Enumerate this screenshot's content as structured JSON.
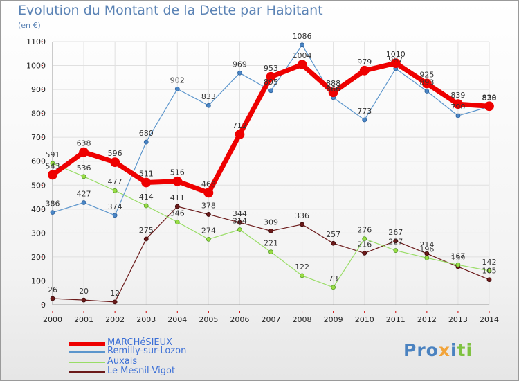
{
  "title": "Evolution du Montant de la Dette par Habitant",
  "unit": "(en €)",
  "logo": {
    "text": "Proxiti",
    "parts": [
      "Pro",
      "x",
      "i",
      "ti"
    ]
  },
  "colors": {
    "MARCHéSIEUX": "#ee0000",
    "Remilly-sur-Lozon": "#5b95cc",
    "Auxais": "#99dd66",
    "Le Mesnil-Vigot": "#6b1a1a",
    "title": "#5b83b5",
    "axis_text": "#222222",
    "grid": "#e0e0e0"
  },
  "chart_data": {
    "type": "line",
    "title": "Evolution du Montant de la Dette par Habitant",
    "subtitle": "(en €)",
    "xlabel": "",
    "ylabel": "",
    "x": [
      "2000",
      "2001",
      "2002",
      "2003",
      "2004",
      "2005",
      "2006",
      "2007",
      "2008",
      "2009",
      "2010",
      "2011",
      "2012",
      "2013",
      "2014"
    ],
    "ylim": [
      0,
      1100
    ],
    "yticks": [
      0,
      100,
      200,
      300,
      400,
      500,
      600,
      700,
      800,
      900,
      1000,
      1100
    ],
    "grid": true,
    "legend_position": "bottom-left",
    "series": [
      {
        "name": "MARCHéSIEUX",
        "values": [
          543,
          638,
          596,
          511,
          516,
          468,
          712,
          953,
          1004,
          888,
          979,
          1010,
          925,
          839,
          830
        ],
        "labels": [
          "543",
          "638",
          "596",
          "511",
          "516",
          "468",
          "712",
          "953",
          "1004",
          "888",
          "979",
          "1010",
          "925",
          "839",
          "830"
        ]
      },
      {
        "name": "Remilly-sur-Lozon",
        "values": [
          386,
          427,
          374,
          680,
          902,
          833,
          969,
          895,
          1086,
          866,
          773,
          987,
          893,
          790,
          828
        ],
        "labels": [
          "386",
          "427",
          "374",
          "680",
          "902",
          "833",
          "969",
          "895",
          "1086",
          "866",
          "773",
          "987",
          "893",
          "790",
          "828"
        ]
      },
      {
        "name": "Auxais",
        "values": [
          591,
          536,
          477,
          414,
          346,
          274,
          314,
          221,
          122,
          73,
          276,
          227,
          196,
          167,
          142
        ],
        "labels": [
          "591",
          "536",
          "477",
          "414",
          "346",
          "274",
          "314",
          "221",
          "122",
          "73",
          "276",
          "227",
          "196",
          "167",
          "142"
        ]
      },
      {
        "name": "Le Mesnil-Vigot",
        "values": [
          26,
          20,
          12,
          275,
          411,
          378,
          344,
          309,
          336,
          257,
          216,
          267,
          214,
          159,
          105
        ],
        "labels": [
          "26",
          "20",
          "12",
          "275",
          "411",
          "378",
          "344",
          "309",
          "336",
          "257",
          "216",
          "267",
          "214",
          "159",
          "105"
        ]
      }
    ]
  }
}
